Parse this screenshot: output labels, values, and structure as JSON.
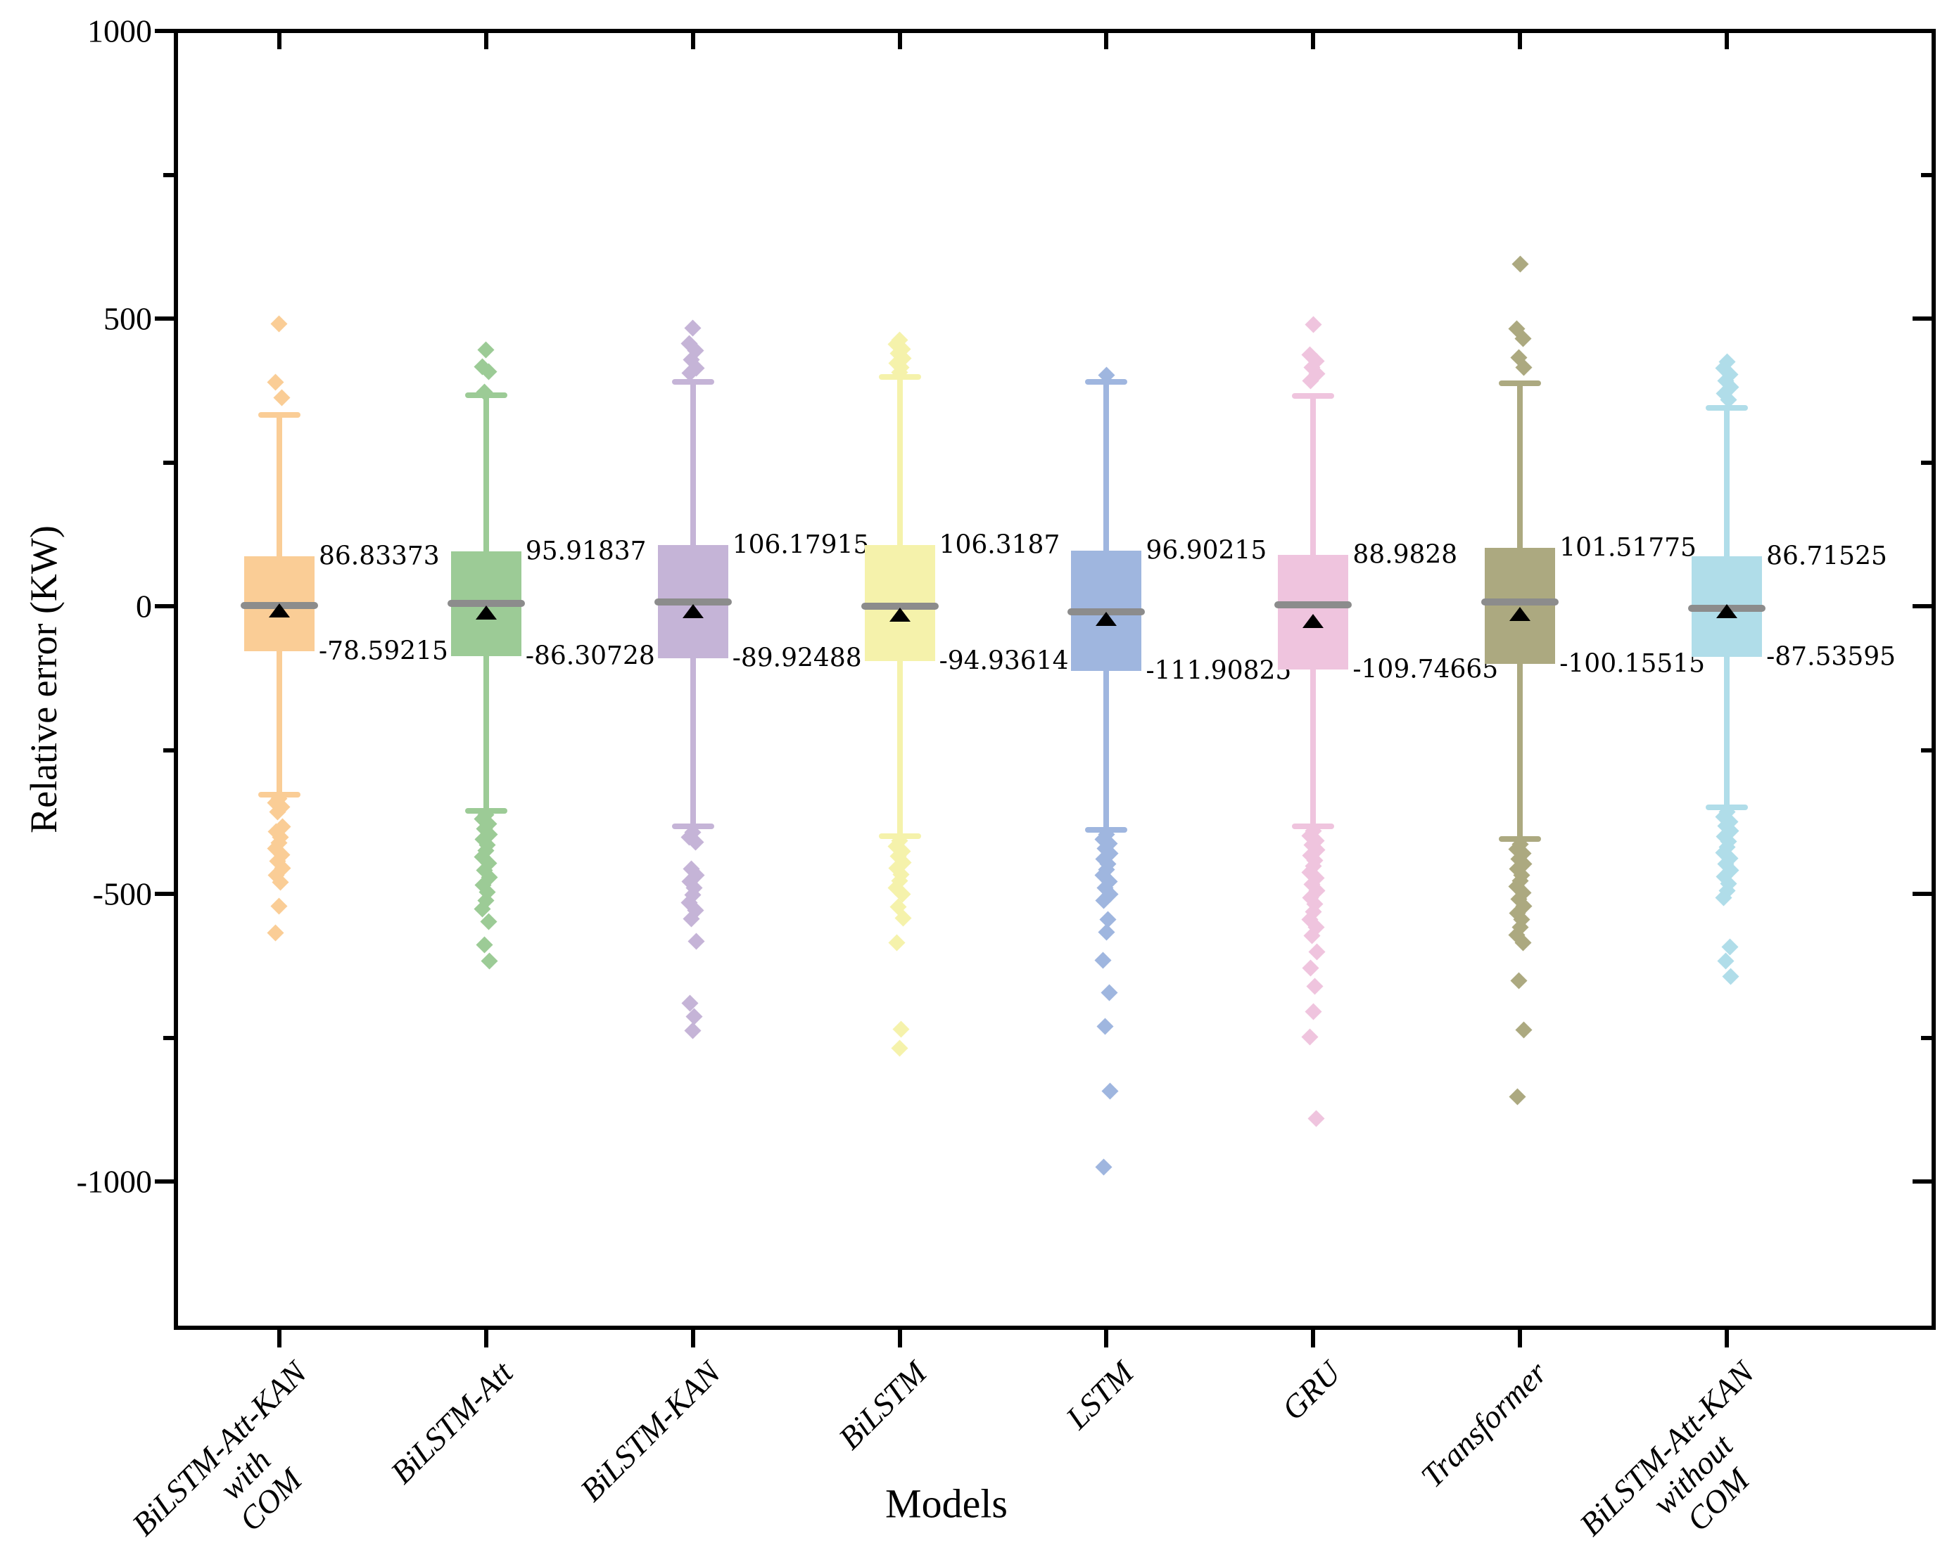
{
  "figure": {
    "x_axis_title": "Models",
    "y_axis_title": "Relative error (KW)"
  },
  "chart_data": {
    "type": "box",
    "title": "",
    "xlabel": "Models",
    "ylabel": "Relative error (KW)",
    "ylim": [
      -1254,
      1000
    ],
    "grid": false,
    "legend": "none",
    "y_major_ticks": [
      1000,
      500,
      0,
      -500,
      -1000
    ],
    "y_major_tick_labels": [
      "1000",
      "500",
      "0",
      "-500",
      "-1000"
    ],
    "y_minor_ticks": [
      750,
      250,
      -250,
      -750
    ],
    "marker_shape": "diamond",
    "colors": {
      "median_line": "#8c8c8c",
      "mean_marker": "#000000",
      "axis": "#000000"
    },
    "categories": [
      "BiLSTM-Att-KAN with COM",
      "BiLSTM-Att",
      "BiLSTM-KAN",
      "BiLSTM",
      "LSTM",
      "GRU",
      "Transformer",
      "BiLSTM-Att-KAN without COM"
    ],
    "series": [
      {
        "label_text": "BiLSTM-Att-KAN\nwith\nCOM",
        "color": "#FACD96",
        "q3": 86.83373,
        "q1": -78.59215,
        "q3_label": "86.83373",
        "q1_label": "-78.59215",
        "median": 1,
        "mean": -7,
        "whisker_high": 333,
        "whisker_low": -328,
        "outliers_high": [
          491,
          390,
          363
        ],
        "outliers_low": [
          -334,
          -341,
          -349,
          -357,
          -383,
          -392,
          -401,
          -411,
          -421,
          -432,
          -443,
          -455,
          -467,
          -480,
          -521,
          -568
        ]
      },
      {
        "label_text": "BiLSTM-Att",
        "color": "#9CCB96",
        "q3": 95.91837,
        "q1": -86.30728,
        "q3_label": "95.91837",
        "q1_label": "-86.30728",
        "median": 5,
        "mean": -11,
        "whisker_high": 367,
        "whisker_low": -356,
        "outliers_high": [
          446,
          416,
          408,
          372
        ],
        "outliers_low": [
          -362,
          -370,
          -378,
          -387,
          -396,
          -405,
          -415,
          -425,
          -436,
          -447,
          -459,
          -471,
          -484,
          -497,
          -511,
          -526,
          -548,
          -588,
          -617
        ]
      },
      {
        "label_text": "BiLSTM-KAN",
        "color": "#C5B4D7",
        "q3": 106.17915,
        "q1": -89.92488,
        "q3_label": "106.17915",
        "q1_label": "-89.92488",
        "median": 8,
        "mean": -9,
        "whisker_high": 390,
        "whisker_low": -383,
        "outliers_high": [
          483,
          457,
          445,
          428,
          414,
          405
        ],
        "outliers_low": [
          -393,
          -401,
          -410,
          -456,
          -467,
          -478,
          -490,
          -502,
          -515,
          -529,
          -543,
          -582,
          -690,
          -713,
          -737
        ]
      },
      {
        "label_text": "BiLSTM",
        "color": "#F5F2AB",
        "q3": 106.3187,
        "q1": -94.93614,
        "q3_label": "106.3187",
        "q1_label": "-94.93614",
        "median": 0,
        "mean": -15,
        "whisker_high": 399,
        "whisker_low": -399,
        "outliers_high": [
          463,
          455,
          447,
          439,
          431,
          423,
          415,
          407
        ],
        "outliers_low": [
          -408,
          -417,
          -426,
          -435,
          -445,
          -455,
          -466,
          -477,
          -489,
          -501,
          -523,
          -542,
          -585,
          -735,
          -768
        ]
      },
      {
        "label_text": "LSTM",
        "color": "#9FB6DF",
        "q3": 96.90215,
        "q1": -111.90825,
        "q3_label": "96.90215",
        "q1_label": "-111.90825",
        "median": -10,
        "mean": -22,
        "whisker_high": 390,
        "whisker_low": -388,
        "outliers_high": [
          402
        ],
        "outliers_low": [
          -397,
          -405,
          -413,
          -421,
          -430,
          -439,
          -448,
          -458,
          -468,
          -478,
          -489,
          -500,
          -512,
          -545,
          -567,
          -615,
          -672,
          -730,
          -843,
          -975
        ]
      },
      {
        "label_text": "GRU",
        "color": "#EFC4DE",
        "q3": 88.9828,
        "q1": -109.74665,
        "q3_label": "88.9828",
        "q1_label": "-109.74665",
        "median": 2,
        "mean": -25,
        "whisker_high": 365,
        "whisker_low": -382,
        "outliers_high": [
          490,
          437,
          426,
          415,
          404,
          392
        ],
        "outliers_low": [
          -391,
          -399,
          -407,
          -415,
          -424,
          -433,
          -442,
          -452,
          -462,
          -472,
          -483,
          -494,
          -506,
          -518,
          -531,
          -544,
          -558,
          -573,
          -601,
          -629,
          -660,
          -705,
          -749,
          -890
        ]
      },
      {
        "label_text": "Transformer",
        "color": "#ACA980",
        "q3": 101.51775,
        "q1": -100.15515,
        "q3_label": "101.51775",
        "q1_label": "-100.15515",
        "median": 7,
        "mean": -13,
        "whisker_high": 388,
        "whisker_low": -405,
        "outliers_high": [
          595,
          482,
          465,
          432,
          415
        ],
        "outliers_low": [
          -414,
          -422,
          -430,
          -439,
          -448,
          -457,
          -467,
          -477,
          -487,
          -498,
          -509,
          -521,
          -533,
          -545,
          -558,
          -571,
          -585,
          -651,
          -736,
          -852
        ]
      },
      {
        "label_text": "BiLSTM-Att-KAN\nwithout\nCOM",
        "color": "#B0DDE9",
        "q3": 86.71525,
        "q1": -87.53595,
        "q3_label": "86.71525",
        "q1_label": "-87.53595",
        "median": -4,
        "mean": -9,
        "whisker_high": 345,
        "whisker_low": -350,
        "outliers_high": [
          425,
          414,
          403,
          392,
          381,
          370,
          359
        ],
        "outliers_low": [
          -358,
          -366,
          -374,
          -382,
          -391,
          -400,
          -409,
          -418,
          -428,
          -438,
          -448,
          -459,
          -470,
          -482,
          -494,
          -507,
          -592,
          -617,
          -644
        ]
      }
    ]
  }
}
